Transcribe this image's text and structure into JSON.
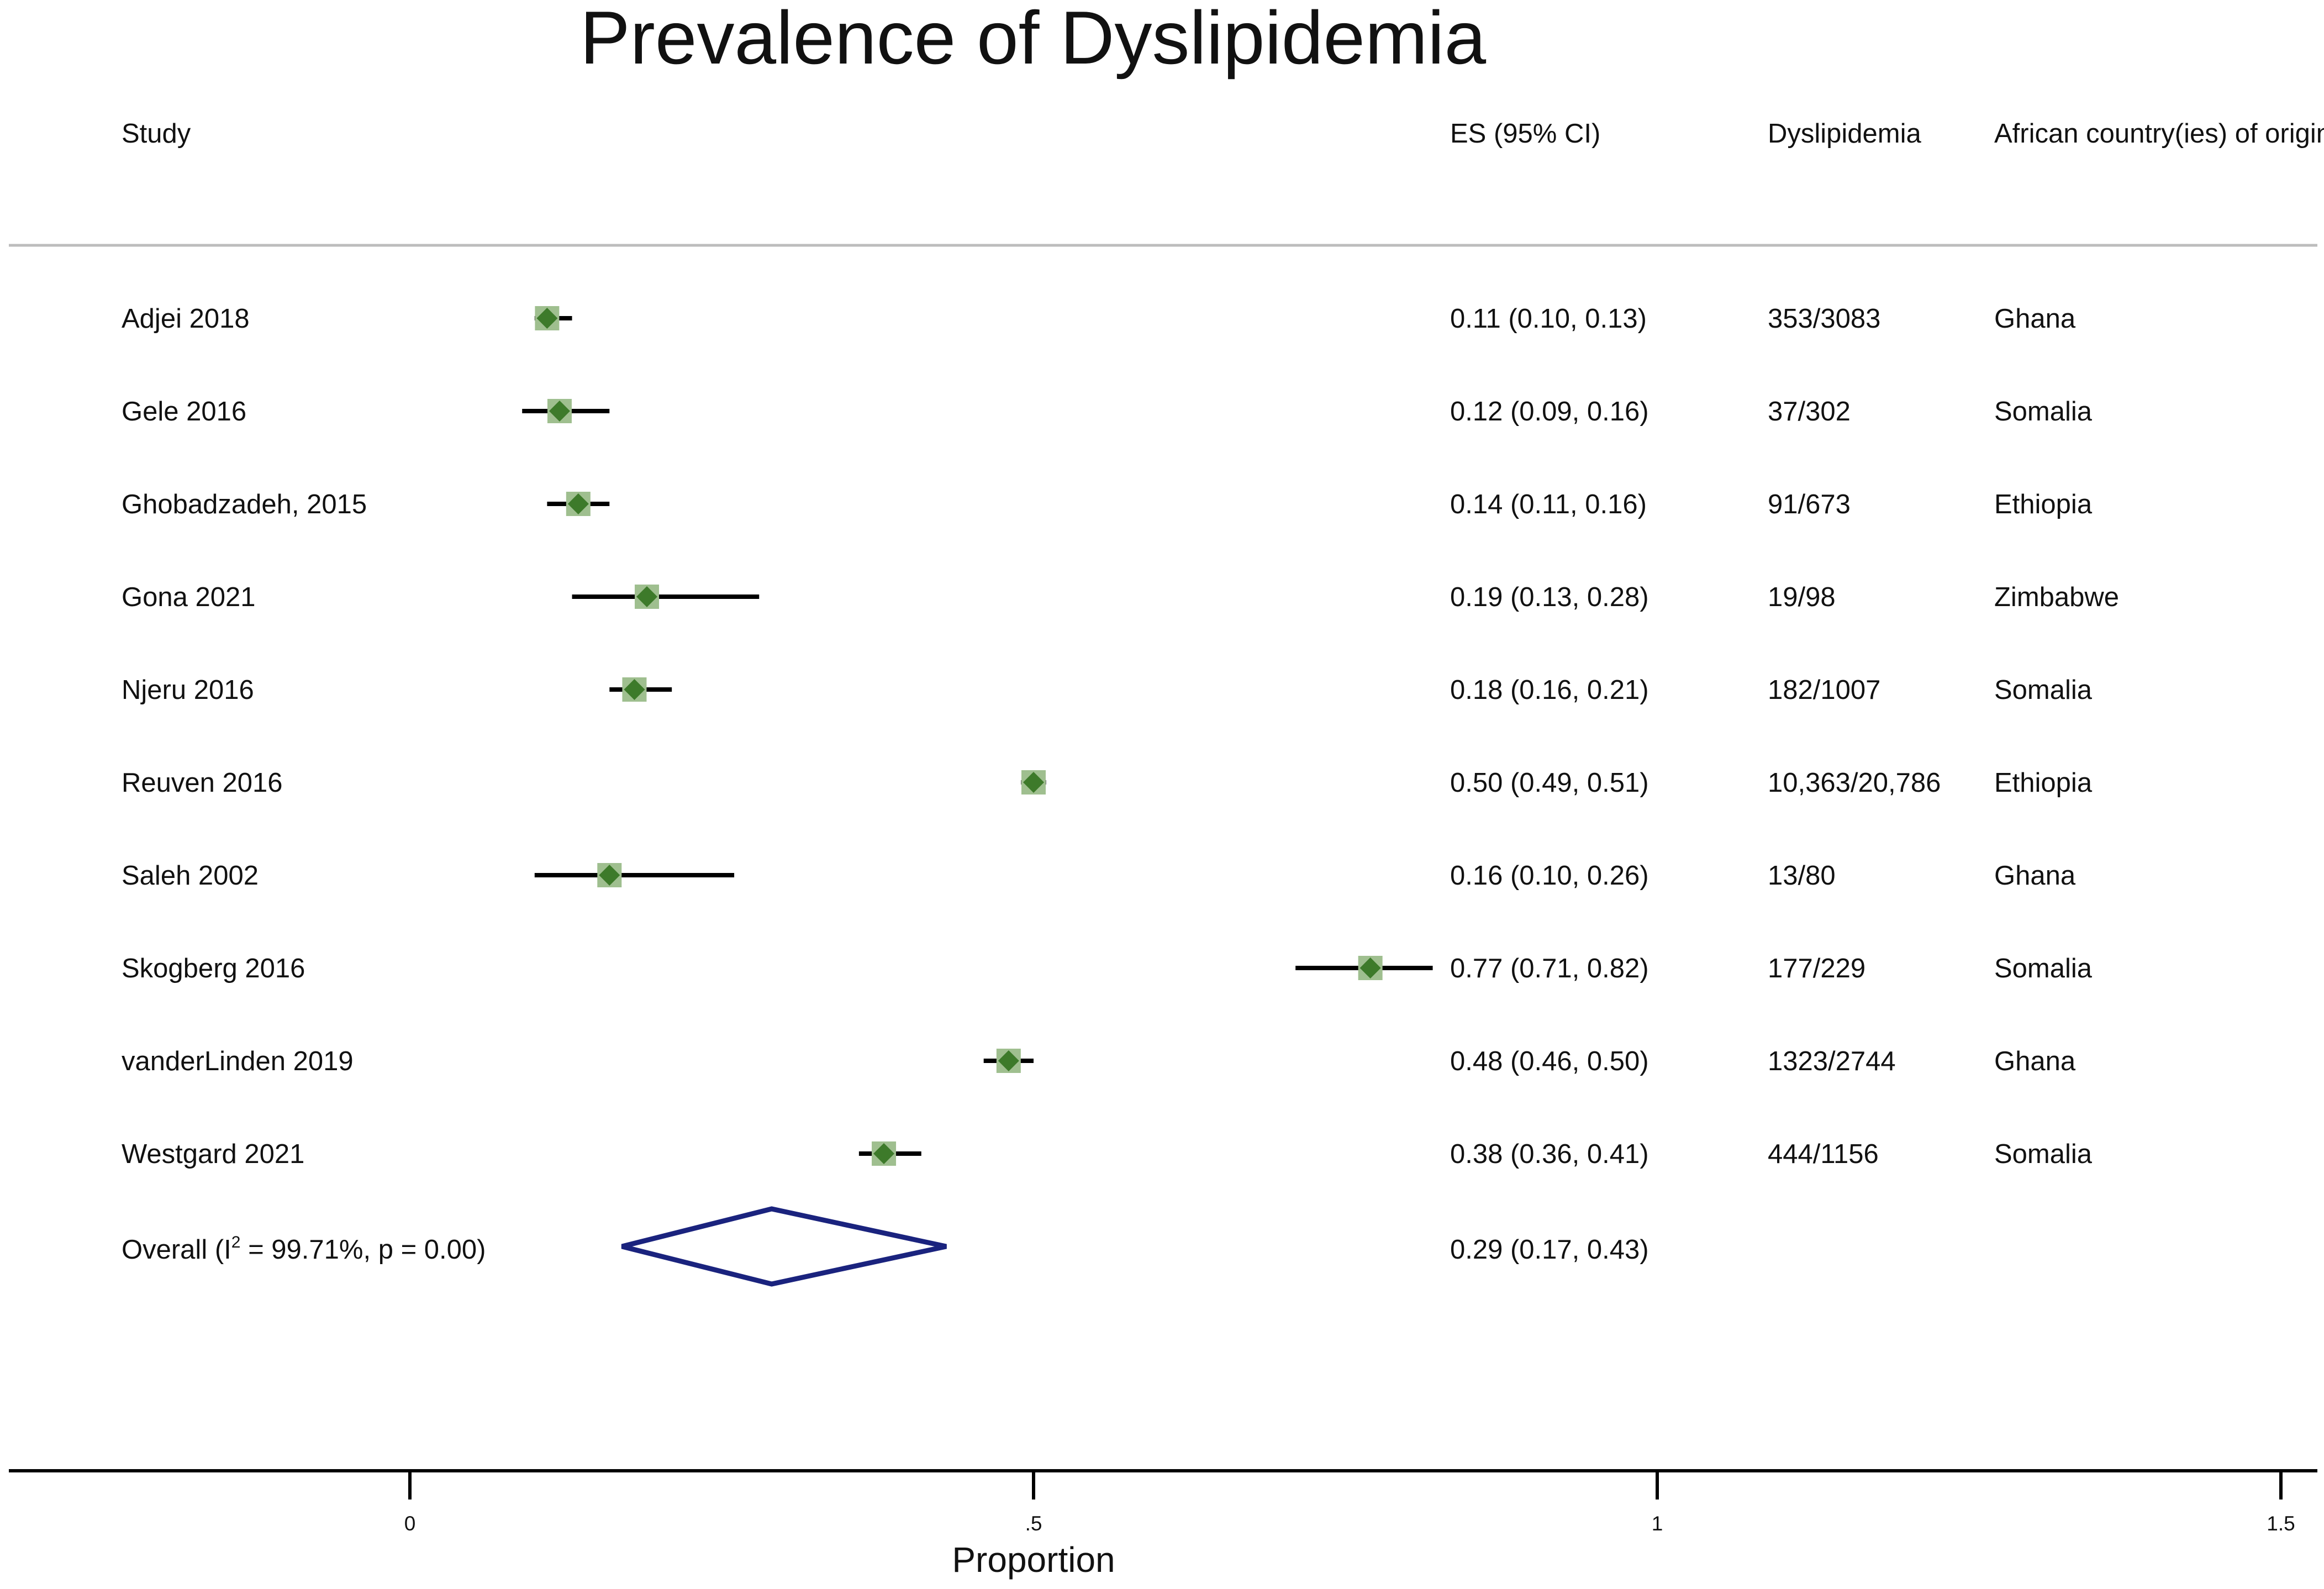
{
  "chart_data": {
    "type": "forest",
    "title": "Prevalence of Dyslipidemia",
    "headers": {
      "study": "Study",
      "es": "ES (95% CI)",
      "cases": "Dyslipidemia",
      "country": "African country(ies) of origin"
    },
    "studies": [
      {
        "name": "Adjei 2018",
        "es": 0.11,
        "lo": 0.1,
        "hi": 0.13,
        "es_text": "0.11 (0.10, 0.13)",
        "cases": "353/3083",
        "country": "Ghana"
      },
      {
        "name": "Gele 2016",
        "es": 0.12,
        "lo": 0.09,
        "hi": 0.16,
        "es_text": "0.12 (0.09, 0.16)",
        "cases": "37/302",
        "country": "Somalia"
      },
      {
        "name": "Ghobadzadeh, 2015",
        "es": 0.135,
        "lo": 0.11,
        "hi": 0.16,
        "es_text": "0.14 (0.11, 0.16)",
        "cases": "91/673",
        "country": "Ethiopia"
      },
      {
        "name": "Gona 2021",
        "es": 0.19,
        "lo": 0.13,
        "hi": 0.28,
        "es_text": "0.19 (0.13, 0.28)",
        "cases": "19/98",
        "country": "Zimbabwe"
      },
      {
        "name": "Njeru 2016",
        "es": 0.18,
        "lo": 0.16,
        "hi": 0.21,
        "es_text": "0.18 (0.16, 0.21)",
        "cases": "182/1007",
        "country": "Somalia"
      },
      {
        "name": "Reuven 2016",
        "es": 0.5,
        "lo": 0.49,
        "hi": 0.51,
        "es_text": "0.50 (0.49, 0.51)",
        "cases": "10,363/20,786",
        "country": "Ethiopia"
      },
      {
        "name": "Saleh 2002",
        "es": 0.16,
        "lo": 0.1,
        "hi": 0.26,
        "es_text": "0.16 (0.10, 0.26)",
        "cases": "13/80",
        "country": "Ghana"
      },
      {
        "name": "Skogberg 2016",
        "es": 0.77,
        "lo": 0.71,
        "hi": 0.82,
        "es_text": "0.77 (0.71, 0.82)",
        "cases": "177/229",
        "country": "Somalia"
      },
      {
        "name": "vanderLinden 2019",
        "es": 0.48,
        "lo": 0.46,
        "hi": 0.5,
        "es_text": "0.48 (0.46, 0.50)",
        "cases": "1323/2744",
        "country": "Ghana"
      },
      {
        "name": "Westgard 2021",
        "es": 0.38,
        "lo": 0.36,
        "hi": 0.41,
        "es_text": "0.38 (0.36, 0.41)",
        "cases": "444/1156",
        "country": "Somalia"
      }
    ],
    "overall": {
      "label_prefix": "Overall  (I",
      "label_sup": "2",
      "label_suffix": " = 99.71%, p = 0.00)",
      "es": 0.29,
      "lo": 0.17,
      "hi": 0.43,
      "es_text": "0.29 (0.17, 0.43)"
    },
    "x_axis": {
      "label": "Proportion",
      "ticks": [
        0,
        0.5,
        1,
        1.5
      ],
      "tick_labels": [
        "0",
        ".5",
        "1",
        "1.5"
      ],
      "range": [
        -0.32,
        1.53
      ]
    },
    "colors": {
      "marker": "#3d7a2a",
      "marker_halo": "#9fbf8f",
      "ci_line": "#000000",
      "diamond": "#1a237e",
      "divider": "#bdbdbd"
    }
  }
}
